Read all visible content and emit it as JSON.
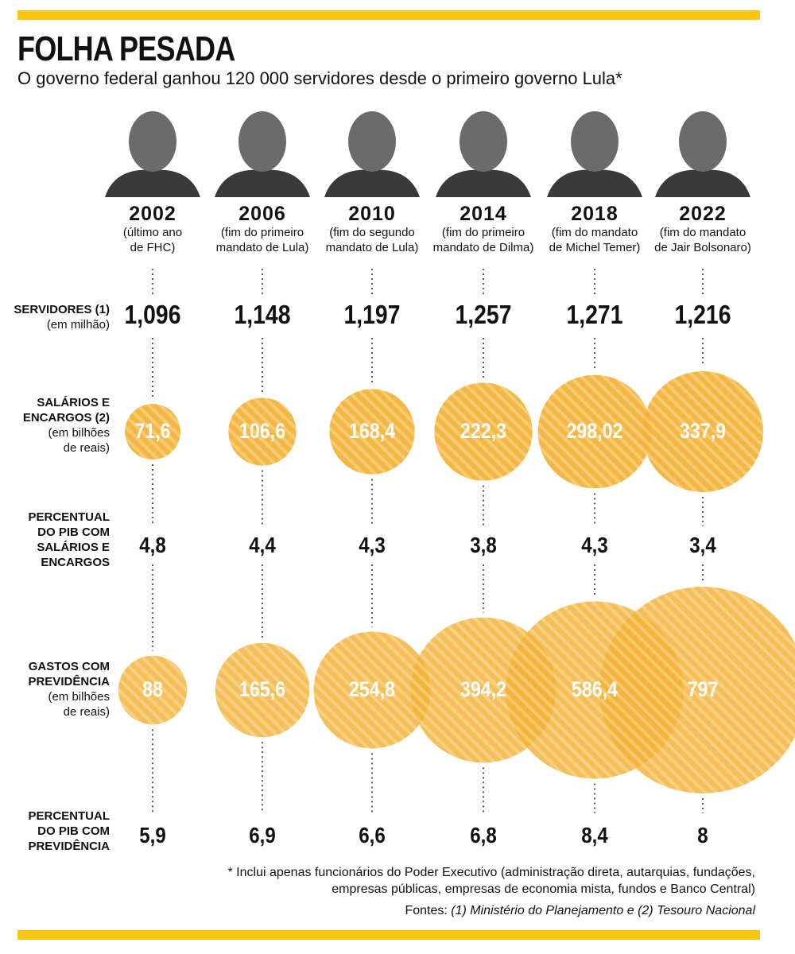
{
  "colors": {
    "accent": "#f8c50f",
    "bubble": "#f2b132",
    "bubble_stripe": "#f7c66a",
    "text": "#111111",
    "portrait": "#3a3a3a"
  },
  "header": {
    "title": "FOLHA PESADA",
    "subtitle": "O governo federal ganhou 120 000 servidores desde o primeiro governo Lula*"
  },
  "row_labels": {
    "servidores": {
      "title": "SERVIDORES (1)",
      "note": "(em milhão)"
    },
    "salarios": {
      "title_1": "SALÁRIOS E",
      "title_2": "ENCARGOS (2)",
      "note_1": "(em bilhões",
      "note_2": "de reais)"
    },
    "pib_salarios": {
      "t1": "PERCENTUAL",
      "t2": "DO PIB COM",
      "t3": "SALÁRIOS E",
      "t4": "ENCARGOS"
    },
    "previdencia": {
      "title_1": "GASTOS COM",
      "title_2": "PREVIDÊNCIA",
      "note_1": "(em bilhões",
      "note_2": "de reais)"
    },
    "pib_previdencia": {
      "t1": "PERCENTUAL",
      "t2": "DO PIB COM",
      "t3": "PREVIDÊNCIA"
    }
  },
  "chart_data": {
    "type": "table",
    "title": "FOLHA PESADA",
    "subtitle": "O governo federal ganhou 120 000 servidores desde o primeiro governo Lula*",
    "columns": [
      {
        "year": "2002",
        "note_1": "(último ano",
        "note_2": "de FHC)",
        "portrait": "FHC portrait"
      },
      {
        "year": "2006",
        "note_1": "(fim do primeiro",
        "note_2": "mandato de Lula)",
        "portrait": "Lula portrait"
      },
      {
        "year": "2010",
        "note_1": "(fim do segundo",
        "note_2": "mandato de Lula)",
        "portrait": "Lula portrait"
      },
      {
        "year": "2014",
        "note_1": "(fim do primeiro",
        "note_2": "mandato de Dilma)",
        "portrait": "Dilma portrait"
      },
      {
        "year": "2018",
        "note_1": "(fim do mandato",
        "note_2": "de Michel Temer)",
        "portrait": "Michel Temer portrait"
      },
      {
        "year": "2022",
        "note_1": "(fim do mandato",
        "note_2": "de Jair Bolsonaro)",
        "portrait": "Jair Bolsonaro portrait"
      }
    ],
    "servidores": [
      "1,096",
      "1,148",
      "1,197",
      "1,257",
      "1,271",
      "1,216"
    ],
    "salarios_encargos": [
      "71,6",
      "106,6",
      "168,4",
      "222,3",
      "298,02",
      "337,9"
    ],
    "salarios_encargos_values": [
      71.6,
      106.6,
      168.4,
      222.3,
      298.02,
      337.9
    ],
    "pib_salarios": [
      "4,8",
      "4,4",
      "4,3",
      "3,8",
      "4,3",
      "3,4"
    ],
    "previdencia": [
      "88",
      "165,6",
      "254,8",
      "394,2",
      "586,4",
      "797"
    ],
    "previdencia_values": [
      88,
      165.6,
      254.8,
      394.2,
      586.4,
      797
    ],
    "pib_previdencia": [
      "5,9",
      "6,9",
      "6,6",
      "6,8",
      "8,4",
      "8"
    ]
  },
  "footer": {
    "footnote_1": "* Inclui apenas funcionários do Poder Executivo (administração direta, autarquias, fundações,",
    "footnote_2": "empresas públicas, empresas de economia mista, fundos e Banco Central)",
    "sources_prefix": "Fontes: ",
    "sources_text": "(1) Ministério do Planejamento e (2) Tesouro Nacional"
  }
}
